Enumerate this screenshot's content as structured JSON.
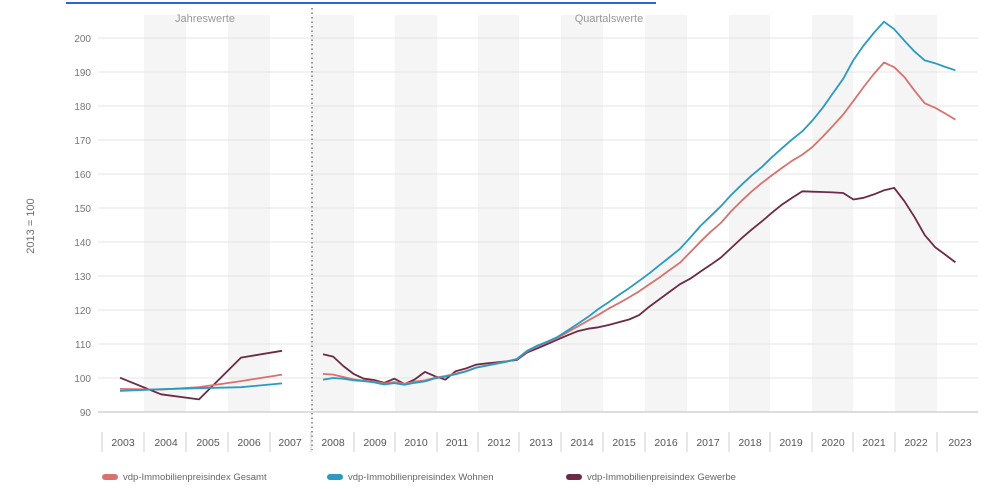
{
  "chart_data": {
    "type": "line",
    "ylabel": "2013 = 100",
    "ylim": [
      90,
      205
    ],
    "yticks": [
      90,
      100,
      110,
      120,
      130,
      140,
      150,
      160,
      170,
      180,
      190,
      200
    ],
    "section_labels": {
      "annual": "Jahreswerte",
      "quarterly": "Quartalswerte"
    },
    "x_tick_labels": [
      "2003",
      "2004",
      "2005",
      "2006",
      "2007",
      "2008",
      "2009",
      "2010",
      "2011",
      "2012",
      "2013",
      "2014",
      "2015",
      "2016",
      "2017",
      "2018",
      "2019",
      "2020",
      "2021",
      "2022",
      "2023"
    ],
    "grid": "horizontal",
    "legend_position": "bottom-left",
    "colors": {
      "gesamt": "#d9726f",
      "wohnen": "#2a9bbf",
      "gewerbe": "#6b2a45"
    },
    "annual": {
      "x": [
        "2003",
        "2004",
        "2005",
        "2006",
        "2007"
      ],
      "series": [
        {
          "name": "vdp-Immobilienpreisindex Gesamt",
          "key": "gesamt",
          "values": [
            96.8,
            96.6,
            97.3,
            99.1,
            101.0
          ]
        },
        {
          "name": "vdp-Immobilienpreisindex Wohnen",
          "key": "wohnen",
          "values": [
            96.2,
            96.7,
            97.0,
            97.3,
            98.4
          ]
        },
        {
          "name": "vdp-Immobilienpreisindex Gewerbe",
          "key": "gewerbe",
          "values": [
            100.1,
            95.2,
            93.7,
            106.0,
            108.0
          ]
        }
      ]
    },
    "quarterly": {
      "x": [
        "2008-Q1",
        "2008-Q2",
        "2008-Q3",
        "2008-Q4",
        "2009-Q1",
        "2009-Q2",
        "2009-Q3",
        "2009-Q4",
        "2010-Q1",
        "2010-Q2",
        "2010-Q3",
        "2010-Q4",
        "2011-Q1",
        "2011-Q2",
        "2011-Q3",
        "2011-Q4",
        "2012-Q1",
        "2012-Q2",
        "2012-Q3",
        "2012-Q4",
        "2013-Q1",
        "2013-Q2",
        "2013-Q3",
        "2013-Q4",
        "2014-Q1",
        "2014-Q2",
        "2014-Q3",
        "2014-Q4",
        "2015-Q1",
        "2015-Q2",
        "2015-Q3",
        "2015-Q4",
        "2016-Q1",
        "2016-Q2",
        "2016-Q3",
        "2016-Q4",
        "2017-Q1",
        "2017-Q2",
        "2017-Q3",
        "2017-Q4",
        "2018-Q1",
        "2018-Q2",
        "2018-Q3",
        "2018-Q4",
        "2019-Q1",
        "2019-Q2",
        "2019-Q3",
        "2019-Q4",
        "2020-Q1",
        "2020-Q2",
        "2020-Q3",
        "2020-Q4",
        "2021-Q1",
        "2021-Q2",
        "2021-Q3",
        "2021-Q4",
        "2022-Q1",
        "2022-Q2",
        "2022-Q3",
        "2022-Q4",
        "2023-Q1",
        "2023-Q2",
        "2023-Q3"
      ],
      "series": [
        {
          "name": "vdp-Immobilienpreisindex Gesamt",
          "key": "gesamt",
          "values": [
            101.2,
            101.0,
            100.3,
            99.6,
            99.2,
            98.9,
            98.4,
            98.8,
            98.3,
            98.9,
            99.3,
            100.1,
            100.6,
            101.3,
            102.0,
            103.1,
            103.7,
            104.3,
            104.9,
            105.5,
            107.8,
            109.3,
            110.5,
            111.8,
            113.5,
            115.2,
            116.9,
            118.6,
            120.4,
            122.0,
            123.7,
            125.5,
            127.6,
            129.6,
            131.8,
            133.9,
            137.0,
            140.1,
            143.0,
            145.6,
            149.0,
            152.0,
            154.8,
            157.3,
            159.6,
            161.8,
            163.9,
            165.7,
            168.0,
            171.0,
            174.2,
            177.5,
            181.5,
            185.6,
            189.4,
            192.8,
            191.4,
            188.5,
            184.5,
            180.8,
            179.5,
            177.8,
            176.0
          ]
        },
        {
          "name": "vdp-Immobilienpreisindex Wohnen",
          "key": "wohnen",
          "values": [
            99.5,
            100.0,
            99.8,
            99.3,
            99.1,
            98.7,
            98.1,
            98.5,
            98.0,
            98.6,
            99.0,
            99.9,
            100.4,
            101.1,
            101.9,
            103.0,
            103.6,
            104.2,
            104.8,
            105.6,
            108.0,
            109.5,
            110.7,
            112.1,
            114.0,
            116.0,
            118.0,
            120.3,
            122.3,
            124.4,
            126.4,
            128.6,
            130.8,
            133.2,
            135.6,
            138.0,
            141.3,
            144.7,
            147.6,
            150.5,
            153.8,
            156.7,
            159.5,
            162.0,
            164.9,
            167.6,
            170.2,
            172.6,
            175.8,
            179.5,
            183.8,
            188.0,
            193.5,
            197.8,
            201.5,
            204.8,
            202.6,
            199.2,
            196.0,
            193.4,
            192.6,
            191.5,
            190.5
          ]
        },
        {
          "name": "vdp-Immobilienpreisindex Gewerbe",
          "key": "gewerbe",
          "values": [
            107.0,
            106.3,
            103.5,
            101.2,
            99.8,
            99.4,
            98.6,
            99.8,
            98.2,
            99.6,
            101.8,
            100.5,
            99.5,
            102.0,
            102.8,
            103.9,
            104.3,
            104.6,
            104.9,
            105.3,
            107.5,
            108.7,
            110.0,
            111.3,
            112.6,
            113.8,
            114.5,
            114.9,
            115.6,
            116.4,
            117.2,
            118.5,
            121.0,
            123.2,
            125.4,
            127.6,
            129.2,
            131.3,
            133.3,
            135.4,
            138.2,
            141.0,
            143.6,
            146.0,
            148.6,
            151.0,
            153.0,
            154.9,
            154.8,
            154.7,
            154.6,
            154.4,
            152.5,
            153.0,
            154.0,
            155.2,
            155.9,
            152.0,
            147.3,
            142.0,
            138.5,
            136.3,
            134.0
          ]
        }
      ]
    }
  }
}
